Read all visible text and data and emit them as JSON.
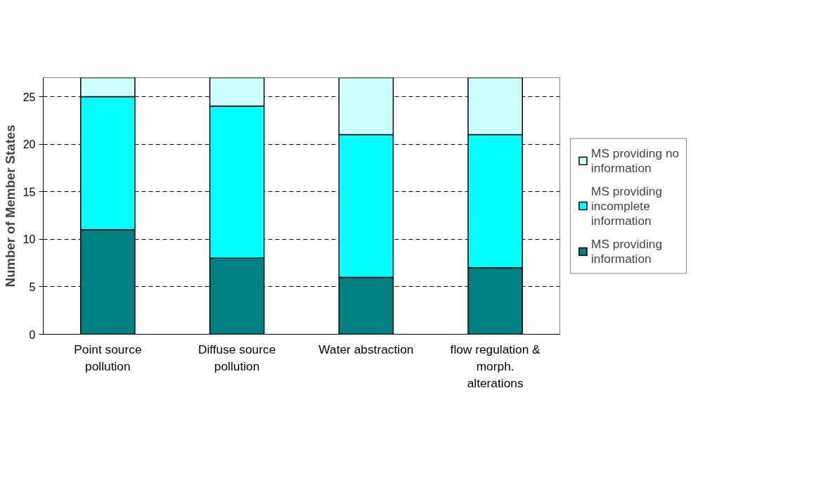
{
  "chart_data": {
    "type": "bar",
    "stacked": true,
    "ylabel": "Number of Member States",
    "categories": [
      "Point source pollution",
      "Diffuse source pollution",
      "Water abstraction",
      "flow regulation & morph. alterations"
    ],
    "series": [
      {
        "name": "MS providing information",
        "color": "#008080",
        "values": [
          11,
          8,
          6,
          7
        ]
      },
      {
        "name": "MS providing incomplete information",
        "color": "#00ffff",
        "values": [
          14,
          16,
          15,
          14
        ]
      },
      {
        "name": "MS providing no information",
        "color": "#ccffff",
        "values": [
          2,
          3,
          6,
          6
        ]
      }
    ],
    "ylim": [
      0,
      27
    ],
    "yticks": [
      0,
      5,
      10,
      15,
      20,
      25
    ],
    "grid": "y",
    "legend": "right"
  }
}
